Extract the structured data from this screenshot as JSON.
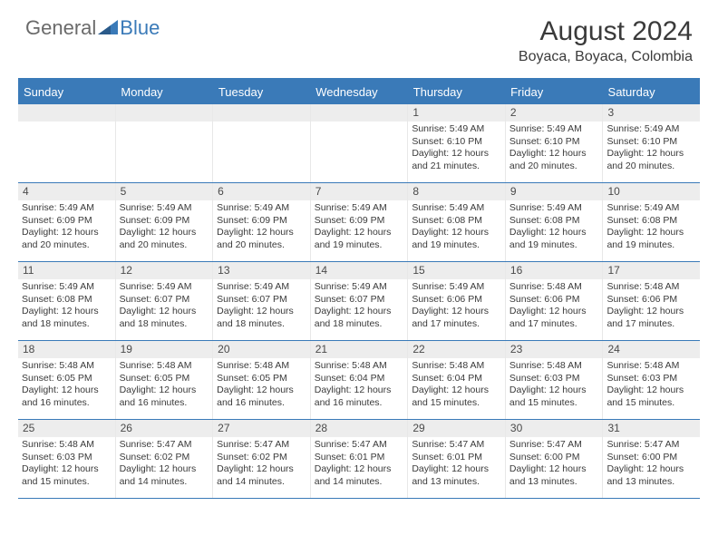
{
  "logo": {
    "general": "General",
    "blue": "Blue"
  },
  "title": "August 2024",
  "location": "Boyaca, Boyaca, Colombia",
  "colors": {
    "accent": "#3a7ab8",
    "bar": "#ededed",
    "text": "#3a3a3a"
  },
  "day_headers": [
    "Sunday",
    "Monday",
    "Tuesday",
    "Wednesday",
    "Thursday",
    "Friday",
    "Saturday"
  ],
  "weeks": [
    [
      {
        "n": "",
        "sr": "",
        "ss": "",
        "dl": ""
      },
      {
        "n": "",
        "sr": "",
        "ss": "",
        "dl": ""
      },
      {
        "n": "",
        "sr": "",
        "ss": "",
        "dl": ""
      },
      {
        "n": "",
        "sr": "",
        "ss": "",
        "dl": ""
      },
      {
        "n": "1",
        "sr": "Sunrise: 5:49 AM",
        "ss": "Sunset: 6:10 PM",
        "dl": "Daylight: 12 hours and 21 minutes."
      },
      {
        "n": "2",
        "sr": "Sunrise: 5:49 AM",
        "ss": "Sunset: 6:10 PM",
        "dl": "Daylight: 12 hours and 20 minutes."
      },
      {
        "n": "3",
        "sr": "Sunrise: 5:49 AM",
        "ss": "Sunset: 6:10 PM",
        "dl": "Daylight: 12 hours and 20 minutes."
      }
    ],
    [
      {
        "n": "4",
        "sr": "Sunrise: 5:49 AM",
        "ss": "Sunset: 6:09 PM",
        "dl": "Daylight: 12 hours and 20 minutes."
      },
      {
        "n": "5",
        "sr": "Sunrise: 5:49 AM",
        "ss": "Sunset: 6:09 PM",
        "dl": "Daylight: 12 hours and 20 minutes."
      },
      {
        "n": "6",
        "sr": "Sunrise: 5:49 AM",
        "ss": "Sunset: 6:09 PM",
        "dl": "Daylight: 12 hours and 20 minutes."
      },
      {
        "n": "7",
        "sr": "Sunrise: 5:49 AM",
        "ss": "Sunset: 6:09 PM",
        "dl": "Daylight: 12 hours and 19 minutes."
      },
      {
        "n": "8",
        "sr": "Sunrise: 5:49 AM",
        "ss": "Sunset: 6:08 PM",
        "dl": "Daylight: 12 hours and 19 minutes."
      },
      {
        "n": "9",
        "sr": "Sunrise: 5:49 AM",
        "ss": "Sunset: 6:08 PM",
        "dl": "Daylight: 12 hours and 19 minutes."
      },
      {
        "n": "10",
        "sr": "Sunrise: 5:49 AM",
        "ss": "Sunset: 6:08 PM",
        "dl": "Daylight: 12 hours and 19 minutes."
      }
    ],
    [
      {
        "n": "11",
        "sr": "Sunrise: 5:49 AM",
        "ss": "Sunset: 6:08 PM",
        "dl": "Daylight: 12 hours and 18 minutes."
      },
      {
        "n": "12",
        "sr": "Sunrise: 5:49 AM",
        "ss": "Sunset: 6:07 PM",
        "dl": "Daylight: 12 hours and 18 minutes."
      },
      {
        "n": "13",
        "sr": "Sunrise: 5:49 AM",
        "ss": "Sunset: 6:07 PM",
        "dl": "Daylight: 12 hours and 18 minutes."
      },
      {
        "n": "14",
        "sr": "Sunrise: 5:49 AM",
        "ss": "Sunset: 6:07 PM",
        "dl": "Daylight: 12 hours and 18 minutes."
      },
      {
        "n": "15",
        "sr": "Sunrise: 5:49 AM",
        "ss": "Sunset: 6:06 PM",
        "dl": "Daylight: 12 hours and 17 minutes."
      },
      {
        "n": "16",
        "sr": "Sunrise: 5:48 AM",
        "ss": "Sunset: 6:06 PM",
        "dl": "Daylight: 12 hours and 17 minutes."
      },
      {
        "n": "17",
        "sr": "Sunrise: 5:48 AM",
        "ss": "Sunset: 6:06 PM",
        "dl": "Daylight: 12 hours and 17 minutes."
      }
    ],
    [
      {
        "n": "18",
        "sr": "Sunrise: 5:48 AM",
        "ss": "Sunset: 6:05 PM",
        "dl": "Daylight: 12 hours and 16 minutes."
      },
      {
        "n": "19",
        "sr": "Sunrise: 5:48 AM",
        "ss": "Sunset: 6:05 PM",
        "dl": "Daylight: 12 hours and 16 minutes."
      },
      {
        "n": "20",
        "sr": "Sunrise: 5:48 AM",
        "ss": "Sunset: 6:05 PM",
        "dl": "Daylight: 12 hours and 16 minutes."
      },
      {
        "n": "21",
        "sr": "Sunrise: 5:48 AM",
        "ss": "Sunset: 6:04 PM",
        "dl": "Daylight: 12 hours and 16 minutes."
      },
      {
        "n": "22",
        "sr": "Sunrise: 5:48 AM",
        "ss": "Sunset: 6:04 PM",
        "dl": "Daylight: 12 hours and 15 minutes."
      },
      {
        "n": "23",
        "sr": "Sunrise: 5:48 AM",
        "ss": "Sunset: 6:03 PM",
        "dl": "Daylight: 12 hours and 15 minutes."
      },
      {
        "n": "24",
        "sr": "Sunrise: 5:48 AM",
        "ss": "Sunset: 6:03 PM",
        "dl": "Daylight: 12 hours and 15 minutes."
      }
    ],
    [
      {
        "n": "25",
        "sr": "Sunrise: 5:48 AM",
        "ss": "Sunset: 6:03 PM",
        "dl": "Daylight: 12 hours and 15 minutes."
      },
      {
        "n": "26",
        "sr": "Sunrise: 5:47 AM",
        "ss": "Sunset: 6:02 PM",
        "dl": "Daylight: 12 hours and 14 minutes."
      },
      {
        "n": "27",
        "sr": "Sunrise: 5:47 AM",
        "ss": "Sunset: 6:02 PM",
        "dl": "Daylight: 12 hours and 14 minutes."
      },
      {
        "n": "28",
        "sr": "Sunrise: 5:47 AM",
        "ss": "Sunset: 6:01 PM",
        "dl": "Daylight: 12 hours and 14 minutes."
      },
      {
        "n": "29",
        "sr": "Sunrise: 5:47 AM",
        "ss": "Sunset: 6:01 PM",
        "dl": "Daylight: 12 hours and 13 minutes."
      },
      {
        "n": "30",
        "sr": "Sunrise: 5:47 AM",
        "ss": "Sunset: 6:00 PM",
        "dl": "Daylight: 12 hours and 13 minutes."
      },
      {
        "n": "31",
        "sr": "Sunrise: 5:47 AM",
        "ss": "Sunset: 6:00 PM",
        "dl": "Daylight: 12 hours and 13 minutes."
      }
    ]
  ]
}
